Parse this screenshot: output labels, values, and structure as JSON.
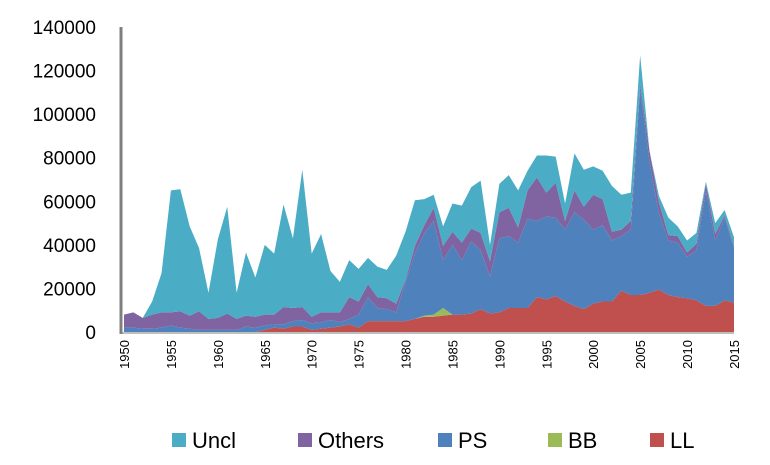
{
  "chart_data": {
    "type": "area",
    "stacked": true,
    "title": "",
    "xlabel": "",
    "ylabel": "",
    "xlim": [
      1950,
      2015
    ],
    "ylim": [
      0,
      140000
    ],
    "yticks": [
      0,
      20000,
      40000,
      60000,
      80000,
      100000,
      120000,
      140000
    ],
    "yticklabels": [
      "0",
      "20000",
      "40000",
      "60000",
      "80000",
      "100000",
      "120000",
      "140000"
    ],
    "xticks": [
      1950,
      1955,
      1960,
      1965,
      1970,
      1975,
      1980,
      1985,
      1990,
      1995,
      2000,
      2005,
      2010,
      2015
    ],
    "xticklabels": [
      "1950",
      "1955",
      "1960",
      "1965",
      "1970",
      "1975",
      "1980",
      "1985",
      "1990",
      "1995",
      "2000",
      "2005",
      "2010",
      "2015"
    ],
    "grid": false,
    "legend_position": "bottom",
    "x": [
      1950,
      1951,
      1952,
      1953,
      1954,
      1955,
      1956,
      1957,
      1958,
      1959,
      1960,
      1961,
      1962,
      1963,
      1964,
      1965,
      1966,
      1967,
      1968,
      1969,
      1970,
      1971,
      1972,
      1973,
      1974,
      1975,
      1976,
      1977,
      1978,
      1979,
      1980,
      1981,
      1982,
      1983,
      1984,
      1985,
      1986,
      1987,
      1988,
      1989,
      1990,
      1991,
      1992,
      1993,
      1994,
      1995,
      1996,
      1997,
      1998,
      1999,
      2000,
      2001,
      2002,
      2003,
      2004,
      2005,
      2006,
      2007,
      2008,
      2009,
      2010,
      2011,
      2012,
      2013,
      2014,
      2015
    ],
    "series": [
      {
        "name": "LL",
        "color": "#c0504d",
        "values": [
          0,
          0,
          0,
          0,
          0,
          0,
          0,
          0,
          0,
          0,
          0,
          0,
          0,
          0,
          0,
          1000,
          2000,
          1500,
          2500,
          2500,
          1000,
          1500,
          2000,
          2500,
          3500,
          2000,
          5000,
          5000,
          5000,
          5000,
          5000,
          6000,
          7000,
          7000,
          7500,
          8000,
          8000,
          8500,
          10500,
          8500,
          9000,
          11000,
          11000,
          11000,
          16000,
          15000,
          16500,
          14000,
          12000,
          10500,
          13000,
          14000,
          14000,
          19000,
          17000,
          17000,
          18000,
          19500,
          17000,
          16000,
          15500,
          14500,
          12000,
          12000,
          14500,
          13500
        ]
      },
      {
        "name": "BB",
        "color": "#9bbb59",
        "values": [
          0,
          0,
          0,
          0,
          0,
          0,
          0,
          0,
          0,
          0,
          0,
          0,
          0,
          0,
          0,
          0,
          0,
          0,
          0,
          0,
          0,
          0,
          0,
          0,
          0,
          0,
          0,
          0,
          0,
          0,
          0,
          0,
          500,
          1000,
          3500,
          0,
          0,
          0,
          0,
          0,
          0,
          0,
          0,
          0,
          0,
          0,
          0,
          0,
          0,
          0,
          0,
          0,
          0,
          0,
          0,
          0,
          0,
          0,
          0,
          0,
          0,
          0,
          0,
          0,
          0,
          0
        ]
      },
      {
        "name": "PS",
        "color": "#4f81bd",
        "values": [
          2000,
          2000,
          1500,
          1500,
          2000,
          3000,
          2000,
          1500,
          1000,
          1000,
          1000,
          1000,
          1000,
          2500,
          2000,
          2000,
          1500,
          2000,
          2500,
          3000,
          3000,
          3000,
          3500,
          2000,
          2500,
          6000,
          11000,
          6000,
          5500,
          4000,
          18000,
          30000,
          38000,
          43000,
          22000,
          32000,
          25000,
          33000,
          27000,
          17000,
          34000,
          33000,
          30000,
          41000,
          35000,
          38000,
          36000,
          33000,
          43000,
          41000,
          34000,
          35000,
          28000,
          25000,
          30000,
          95000,
          60000,
          35000,
          25000,
          25000,
          19000,
          23000,
          53000,
          30000,
          38000,
          25000
        ]
      },
      {
        "name": "Others",
        "color": "#8064a2",
        "values": [
          6000,
          7000,
          5000,
          6500,
          7000,
          6000,
          7500,
          6000,
          8500,
          5000,
          5500,
          7500,
          5000,
          5000,
          5000,
          5000,
          4500,
          8000,
          6000,
          6000,
          3000,
          4500,
          3500,
          4500,
          10000,
          6000,
          6000,
          5000,
          5000,
          4000,
          1000,
          3500,
          3500,
          6000,
          6500,
          6000,
          8000,
          6000,
          8000,
          7000,
          12000,
          13000,
          7000,
          13000,
          20000,
          11000,
          16000,
          4000,
          10000,
          6000,
          16000,
          12000,
          4000,
          3000,
          4000,
          2000,
          5000,
          5000,
          2500,
          3000,
          2000,
          3000,
          3000,
          3000,
          1000,
          1000
        ]
      },
      {
        "name": "Uncl",
        "color": "#4bacc6",
        "values": [
          0,
          0,
          0,
          6000,
          18000,
          56000,
          56000,
          41000,
          29000,
          12000,
          36000,
          49000,
          12000,
          29000,
          18000,
          32000,
          28000,
          47000,
          32000,
          63000,
          29000,
          36000,
          19000,
          14000,
          17000,
          15000,
          12000,
          14000,
          13000,
          22000,
          22000,
          21000,
          12000,
          6000,
          9000,
          13000,
          17000,
          19000,
          24000,
          7500,
          13000,
          15000,
          17000,
          9000,
          10000,
          17000,
          12000,
          8000,
          17000,
          17000,
          13000,
          13000,
          21000,
          16000,
          13000,
          13000,
          0,
          3000,
          8000,
          4500,
          5500,
          5000,
          1000,
          5000,
          2500,
          4000
        ]
      }
    ],
    "legend_order": [
      "Uncl",
      "Others",
      "PS",
      "BB",
      "LL"
    ]
  }
}
